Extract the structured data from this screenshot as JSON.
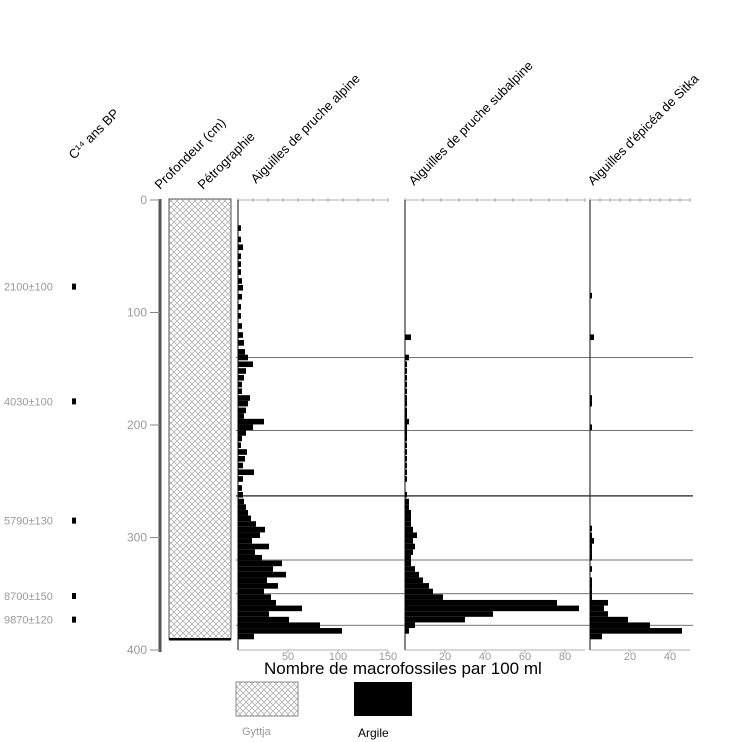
{
  "headers": {
    "c14": "C¹⁴ ans BP",
    "depth": "Profondeur (cm)",
    "petro": "Pétrographie",
    "alpine": "Aiguilles de pruche alpine",
    "subalpine": "Aiguilles de pruche subalpine",
    "sitka": "Aiguilles d'épicéa de Sitka"
  },
  "dates": [
    {
      "label": "2100±100",
      "depth": 77
    },
    {
      "label": "4030±100",
      "depth": 179
    },
    {
      "label": "5790±130",
      "depth": 285
    },
    {
      "label": "8700±150",
      "depth": 352
    },
    {
      "label": "9870±120",
      "depth": 373
    }
  ],
  "depth_ticks": [
    0,
    100,
    200,
    300,
    400
  ],
  "zone_boundaries": [
    140,
    205,
    263,
    320,
    350,
    378
  ],
  "legend": {
    "caption": "Nombre de macrofossiles par 100 ml",
    "gyttja": "Gyttja",
    "clay": "Argile"
  },
  "colors": {
    "bars": "#000000",
    "hatch": "#b3b3b3",
    "lines": "#555555",
    "tick_text": "#9a9a9a"
  },
  "chart_data": {
    "type": "bar",
    "orientation": "horizontal",
    "title": "",
    "ylabel": "Profondeur (cm)",
    "xlabel": "Nombre de macrofossiles par 100 ml",
    "ylim": [
      0,
      400
    ],
    "series": [
      {
        "name": "Aiguilles de pruche alpine",
        "xlim": [
          0,
          150
        ],
        "xticks": [
          50,
          100,
          150
        ],
        "depth": [
          25,
          35,
          42,
          50,
          57,
          64,
          72,
          78,
          86,
          95,
          103,
          112,
          120,
          127,
          135,
          140,
          146,
          152,
          158,
          164,
          170,
          176,
          181,
          187,
          192,
          197,
          202,
          207,
          212,
          218,
          224,
          230,
          236,
          242,
          248,
          256,
          262,
          268,
          273,
          278,
          283,
          288,
          293,
          298,
          303,
          308,
          313,
          318,
          323,
          328,
          333,
          338,
          343,
          348,
          353,
          358,
          363,
          368,
          373,
          378,
          383,
          388
        ],
        "values": [
          3,
          3,
          5,
          3,
          3,
          3,
          4,
          5,
          4,
          3,
          3,
          4,
          5,
          6,
          7,
          10,
          15,
          8,
          6,
          4,
          4,
          12,
          10,
          8,
          6,
          26,
          15,
          8,
          4,
          3,
          9,
          7,
          5,
          16,
          5,
          4,
          5,
          6,
          8,
          10,
          13,
          18,
          27,
          22,
          14,
          31,
          17,
          24,
          44,
          35,
          48,
          29,
          40,
          26,
          33,
          38,
          64,
          31,
          51,
          82,
          104,
          16
        ]
      },
      {
        "name": "Aiguilles de pruche subalpine",
        "xlim": [
          0,
          90
        ],
        "xticks": [
          20,
          40,
          60,
          80
        ],
        "depth": [
          122,
          140,
          146,
          152,
          158,
          164,
          170,
          176,
          181,
          187,
          192,
          197,
          202,
          207,
          212,
          218,
          224,
          230,
          236,
          242,
          248,
          262,
          268,
          273,
          278,
          283,
          288,
          293,
          298,
          303,
          308,
          313,
          318,
          323,
          328,
          333,
          338,
          343,
          348,
          353,
          358,
          363,
          368,
          373,
          378,
          383
        ],
        "values": [
          3,
          2,
          1,
          1,
          1,
          1,
          1,
          1,
          1,
          1,
          1,
          2,
          1,
          1,
          1,
          1,
          1,
          1,
          1,
          1,
          1,
          1,
          2,
          2,
          3,
          3,
          3,
          4,
          6,
          4,
          5,
          4,
          3,
          3,
          5,
          7,
          9,
          12,
          14,
          19,
          76,
          87,
          44,
          30,
          5,
          2
        ]
      },
      {
        "name": "Aiguilles d'épicéa de Sitka",
        "xlim": [
          0,
          50
        ],
        "xticks": [
          20,
          40
        ],
        "depth": [
          85,
          122,
          176,
          181,
          202,
          292,
          298,
          303,
          308,
          313,
          318,
          328,
          338,
          343,
          348,
          353,
          358,
          363,
          368,
          373,
          378,
          383,
          388
        ],
        "values": [
          1,
          2,
          1,
          1,
          1,
          1,
          1,
          2,
          1,
          1,
          1,
          1,
          1,
          1,
          1,
          1,
          9,
          7,
          9,
          19,
          30,
          46,
          6
        ]
      }
    ]
  }
}
